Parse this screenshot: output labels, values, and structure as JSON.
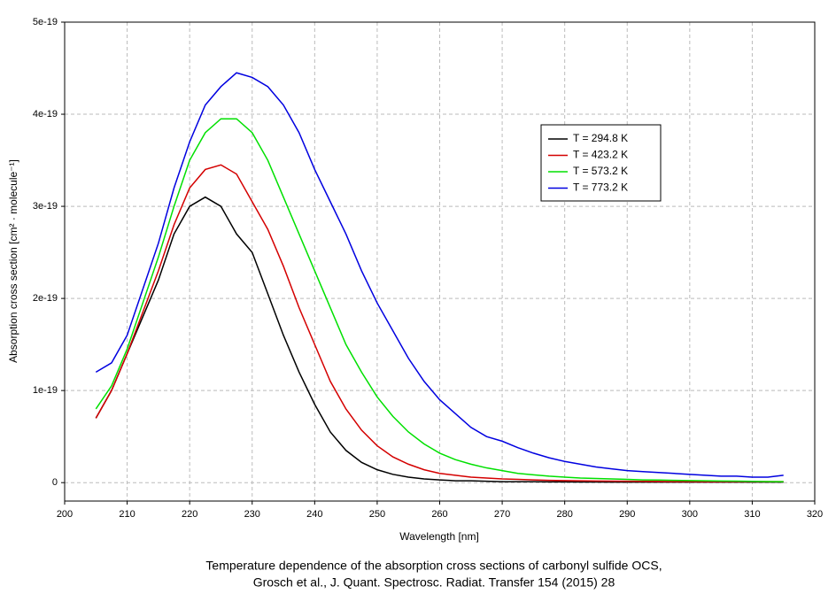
{
  "chart_data": {
    "type": "line",
    "xlabel": "Wavelength [nm]",
    "ylabel": "Absorption cross section [cm² · molecule⁻¹]",
    "caption": [
      "Temperature dependence of the absorption cross sections of carbonyl sulfide OCS,",
      "Grosch et al., J. Quant. Spectrosc. Radiat. Transfer 154 (2015) 28"
    ],
    "xlim": [
      200,
      320
    ],
    "ylim": [
      -2e-20,
      5e-19
    ],
    "xticks": [
      200,
      210,
      220,
      230,
      240,
      250,
      260,
      270,
      280,
      290,
      300,
      310,
      320
    ],
    "yticks": [
      0,
      1e-19,
      2e-19,
      3e-19,
      4e-19,
      5e-19
    ],
    "grid": true,
    "legend": "upper right",
    "x": [
      205,
      207.5,
      210,
      212.5,
      215,
      217.5,
      220,
      222.5,
      225,
      227.5,
      230,
      232.5,
      235,
      237.5,
      240,
      242.5,
      245,
      247.5,
      250,
      252.5,
      255,
      257.5,
      260,
      262.5,
      265,
      267.5,
      270,
      272.5,
      275,
      277.5,
      280,
      282.5,
      285,
      287.5,
      290,
      292.5,
      295,
      297.5,
      300,
      302.5,
      305,
      307.5,
      310,
      312.5,
      315
    ],
    "series": [
      {
        "name": "T = 294.8 K",
        "color": "#000000",
        "values": [
          7e-20,
          1e-19,
          1.4e-19,
          1.8e-19,
          2.2e-19,
          2.7e-19,
          3e-19,
          3.1e-19,
          3e-19,
          2.7e-19,
          2.5e-19,
          2.05e-19,
          1.6e-19,
          1.2e-19,
          8.5e-20,
          5.5e-20,
          3.5e-20,
          2.2e-20,
          1.4e-20,
          9e-21,
          6e-21,
          4e-21,
          3e-21,
          2e-21,
          2e-21,
          1.5e-21,
          1e-21,
          1e-21,
          1e-21,
          8e-22,
          8e-22,
          7e-22,
          7e-22,
          6e-22,
          6e-22,
          5e-22,
          5e-22,
          5e-22,
          5e-22,
          5e-22,
          5e-22,
          5e-22,
          5e-22,
          5e-22,
          5e-22
        ]
      },
      {
        "name": "T = 423.2 K",
        "color": "#d40000",
        "values": [
          7e-20,
          1e-19,
          1.4e-19,
          1.85e-19,
          2.3e-19,
          2.8e-19,
          3.2e-19,
          3.4e-19,
          3.45e-19,
          3.35e-19,
          3.05e-19,
          2.75e-19,
          2.35e-19,
          1.9e-19,
          1.5e-19,
          1.1e-19,
          8e-20,
          5.7e-20,
          4e-20,
          2.8e-20,
          2e-20,
          1.4e-20,
          1e-20,
          8e-21,
          6e-21,
          5e-21,
          4e-21,
          3.5e-21,
          3e-21,
          2.5e-21,
          2.2e-21,
          2e-21,
          1.8e-21,
          1.6e-21,
          1.5e-21,
          1.4e-21,
          1.3e-21,
          1.2e-21,
          1.1e-21,
          1e-21,
          1e-21,
          1e-21,
          1e-21,
          1e-21,
          1e-21
        ]
      },
      {
        "name": "T = 573.2 K",
        "color": "#00e000",
        "values": [
          8e-20,
          1.05e-19,
          1.45e-19,
          1.95e-19,
          2.45e-19,
          3e-19,
          3.5e-19,
          3.8e-19,
          3.95e-19,
          3.95e-19,
          3.8e-19,
          3.5e-19,
          3.1e-19,
          2.7e-19,
          2.3e-19,
          1.9e-19,
          1.5e-19,
          1.2e-19,
          9.3e-20,
          7.2e-20,
          5.5e-20,
          4.2e-20,
          3.2e-20,
          2.5e-20,
          2e-20,
          1.6e-20,
          1.3e-20,
          1e-20,
          8.5e-21,
          7e-21,
          6e-21,
          5e-21,
          4.5e-21,
          4e-21,
          3.5e-21,
          3e-21,
          2.8e-21,
          2.5e-21,
          2.2e-21,
          2e-21,
          1.8e-21,
          1.6e-21,
          1.4e-21,
          1.2e-21,
          1e-21
        ]
      },
      {
        "name": "T = 773.2 K",
        "color": "#0000e0",
        "values": [
          1.2e-19,
          1.3e-19,
          1.6e-19,
          2.1e-19,
          2.6e-19,
          3.2e-19,
          3.7e-19,
          4.1e-19,
          4.3e-19,
          4.45e-19,
          4.4e-19,
          4.3e-19,
          4.1e-19,
          3.8e-19,
          3.4e-19,
          3.05e-19,
          2.7e-19,
          2.3e-19,
          1.95e-19,
          1.65e-19,
          1.35e-19,
          1.1e-19,
          9e-20,
          7.5e-20,
          6e-20,
          5e-20,
          4.5e-20,
          3.8e-20,
          3.2e-20,
          2.7e-20,
          2.3e-20,
          2e-20,
          1.7e-20,
          1.5e-20,
          1.3e-20,
          1.2e-20,
          1.1e-20,
          1e-20,
          9e-21,
          8e-21,
          7e-21,
          7e-21,
          6e-21,
          6e-21,
          8e-21
        ]
      }
    ]
  }
}
